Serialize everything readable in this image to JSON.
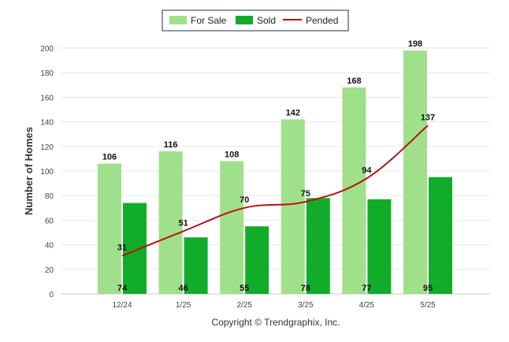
{
  "chart_data": {
    "type": "bar",
    "categories": [
      "12/24",
      "1/25",
      "2/25",
      "3/25",
      "4/25",
      "5/25"
    ],
    "series": [
      {
        "name": "For Sale",
        "kind": "bar",
        "color": "#a0e08a",
        "values": [
          106,
          116,
          108,
          142,
          168,
          198
        ]
      },
      {
        "name": "Sold",
        "kind": "bar",
        "color": "#11ad2a",
        "values": [
          74,
          46,
          55,
          78,
          77,
          95
        ]
      },
      {
        "name": "Pended",
        "kind": "line",
        "color": "#bb1111",
        "values": [
          31,
          51,
          70,
          75,
          94,
          137
        ]
      }
    ],
    "ylabel": "Number of Homes",
    "xlabel": "",
    "ylim": [
      0,
      200
    ],
    "yticks": [
      0,
      20,
      40,
      60,
      80,
      100,
      120,
      140,
      160,
      180,
      200
    ],
    "grid": true,
    "legend": "top-center"
  },
  "footer": {
    "copyright": "Copyright © Trendgraphix, Inc."
  }
}
